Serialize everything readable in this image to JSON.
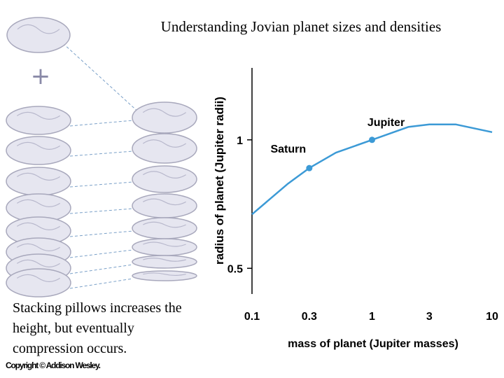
{
  "title": "Understanding Jovian planet sizes and densities",
  "caption": [
    "Stacking pillows increases the",
    "height, but eventually",
    "compression occurs."
  ],
  "copyright": "Copyright © Addison Wesley.",
  "chart_data": {
    "type": "line",
    "xlabel": "mass of planet (Jupiter masses)",
    "ylabel": "radius of planet (Jupiter radii)",
    "xscale": "log",
    "xlim": [
      0.1,
      10
    ],
    "xticks": [
      0.1,
      0.3,
      1,
      3,
      10
    ],
    "ylim": [
      0.4,
      1.28
    ],
    "yticks": [
      0.5,
      1
    ],
    "color": "#3c9ad6",
    "x": [
      0.1,
      0.2,
      0.3,
      0.5,
      1,
      2,
      3,
      5,
      10
    ],
    "values": [
      0.71,
      0.83,
      0.89,
      0.95,
      1.0,
      1.05,
      1.06,
      1.06,
      1.03
    ],
    "points": [
      {
        "label": "Saturn",
        "x": 0.3,
        "value": 0.89
      },
      {
        "label": "Jupiter",
        "x": 1,
        "value": 1.0
      }
    ]
  }
}
